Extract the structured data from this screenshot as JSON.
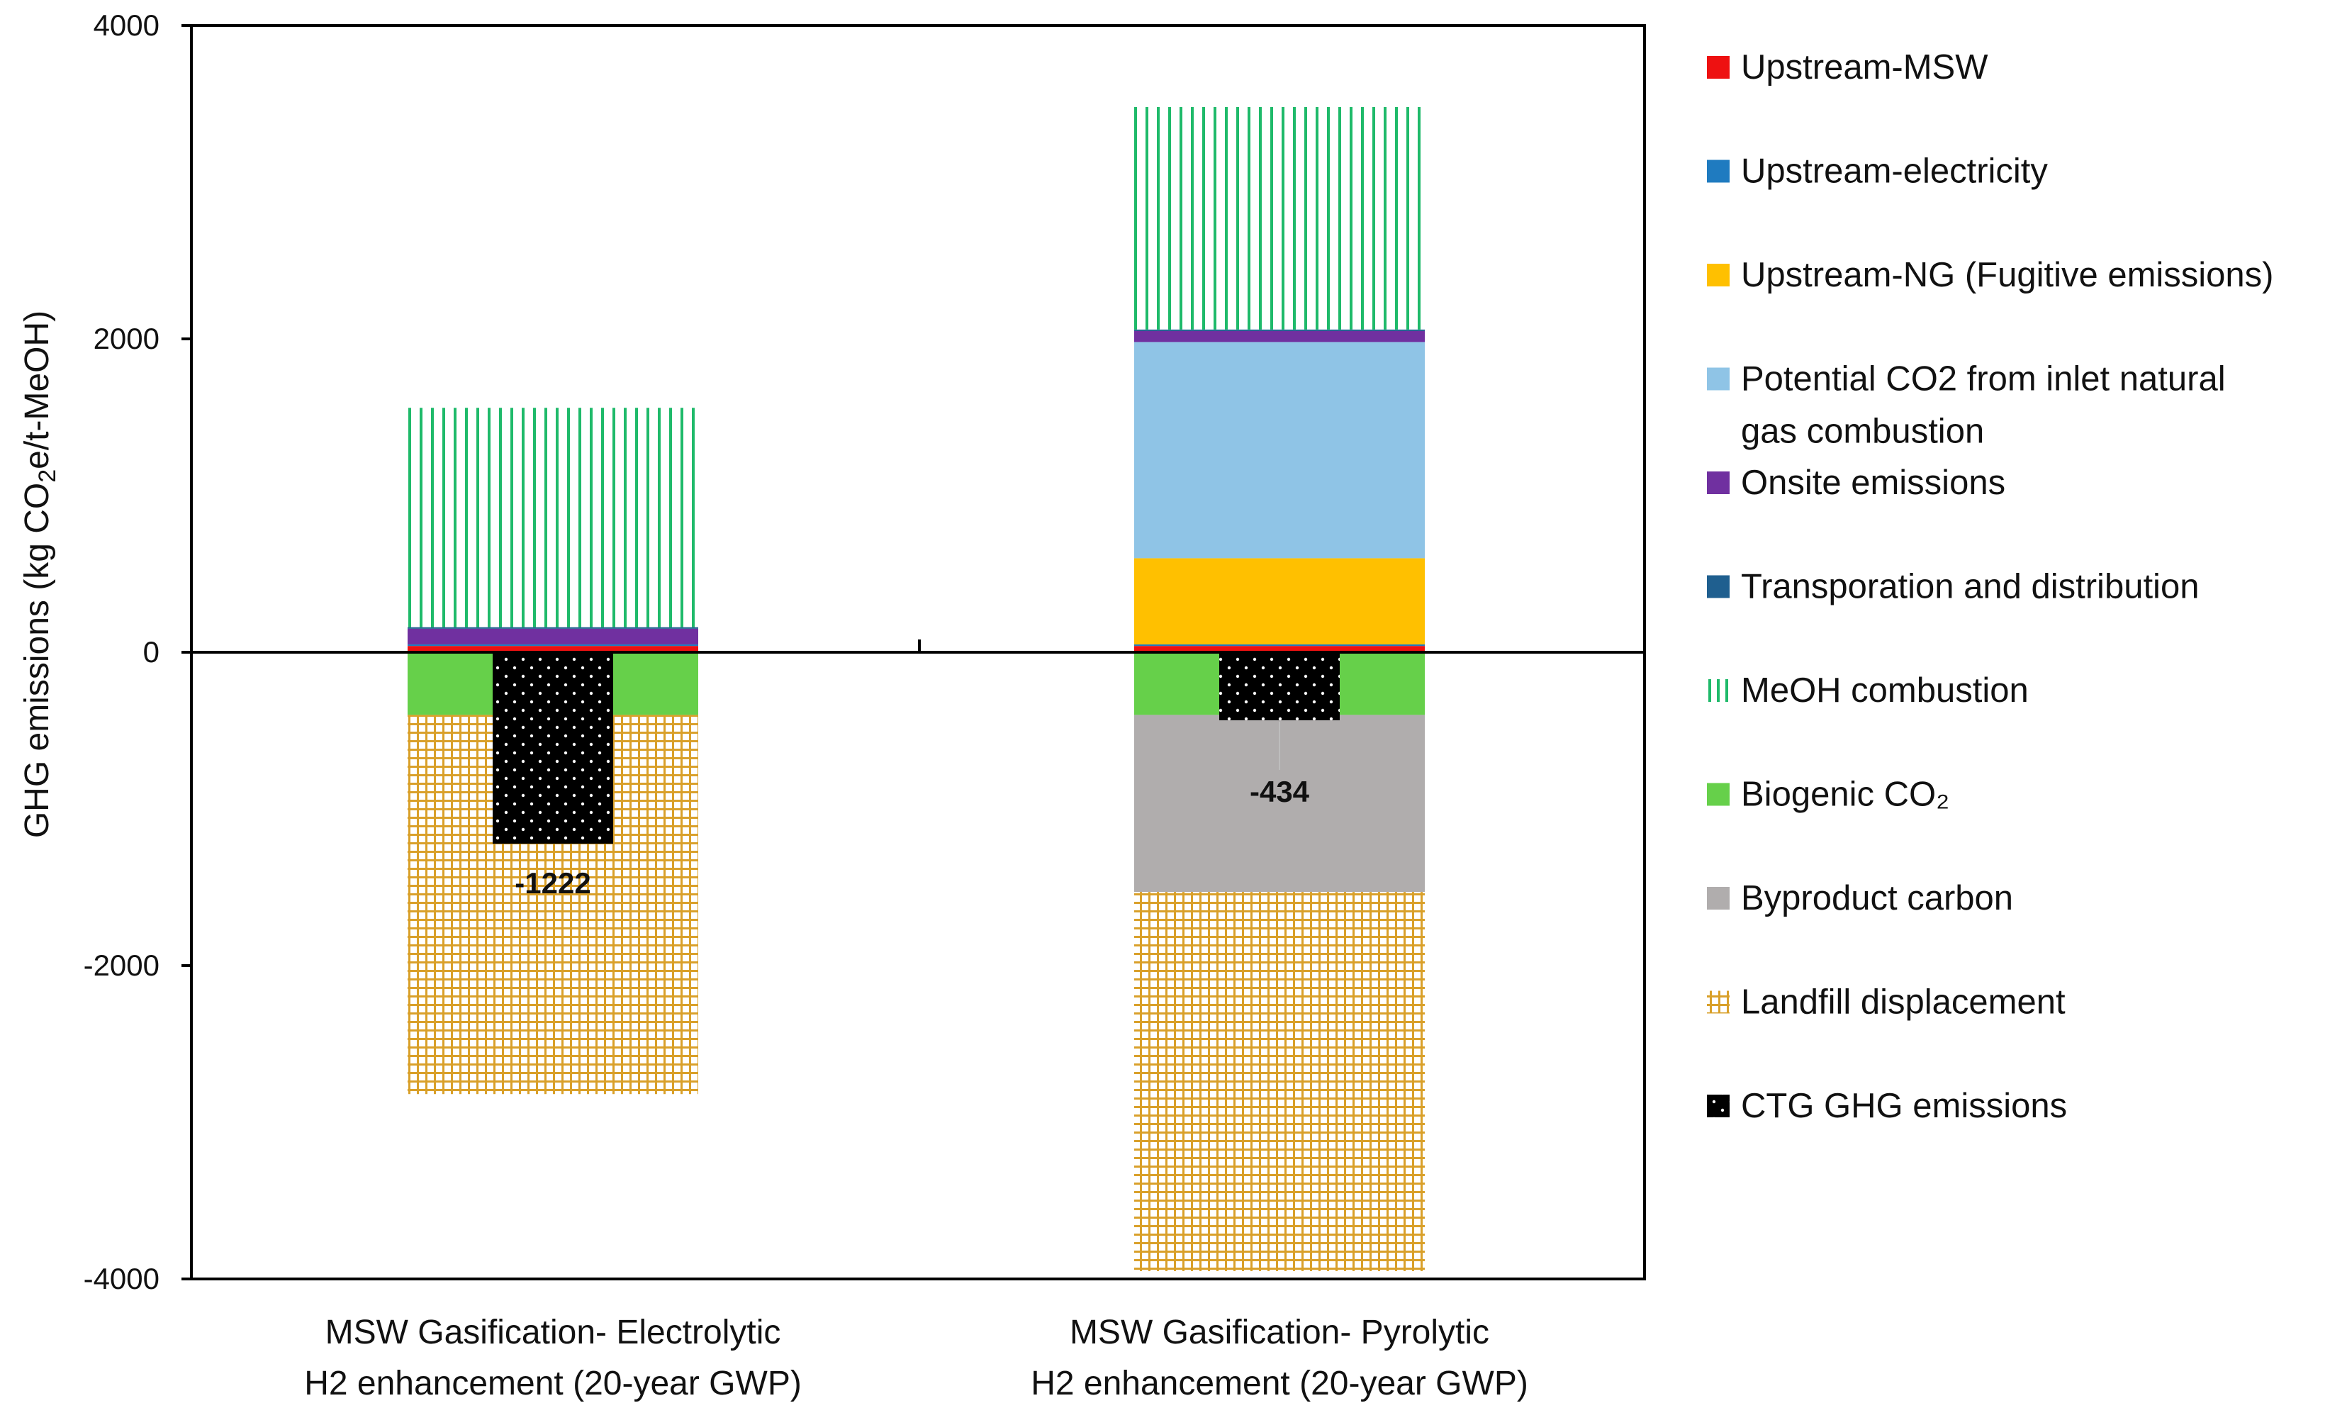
{
  "chart_data": {
    "type": "bar",
    "stacked": true,
    "title": "",
    "xlabel": "",
    "ylabel_prefix": "GHG emissions (kg CO",
    "ylabel_sub": "2",
    "ylabel_suffix": "e/t-MeOH)",
    "ylim": [
      -4000,
      4000
    ],
    "yticks": [
      4000,
      2000,
      0,
      -2000,
      -4000
    ],
    "categories": [
      [
        "MSW Gasification- Electrolytic",
        "H2 enhancement (20-year GWP)"
      ],
      [
        "MSW Gasification- Pyrolytic",
        "H2 enhancement (20-year GWP)"
      ]
    ],
    "series": [
      {
        "name": "Upstream-MSW",
        "legend_lines": [
          "Upstream-MSW"
        ],
        "color": "#ee1111",
        "pattern": "solid",
        "values": [
          40,
          40
        ]
      },
      {
        "name": "Upstream-electricity",
        "legend_lines": [
          "Upstream-electricity"
        ],
        "color": "#1f7bc0",
        "pattern": "solid",
        "values": [
          10,
          10
        ]
      },
      {
        "name": "Upstream-NG (Fugitive emissions)",
        "legend_lines": [
          "Upstream-NG (Fugitive emissions)"
        ],
        "color": "#ffc000",
        "pattern": "solid",
        "values": [
          0,
          550
        ]
      },
      {
        "name": "Potential CO2 from inlet natural gas combustion",
        "legend_lines": [
          "Potential CO2 from inlet natural",
          "gas combustion"
        ],
        "color": "#8fc4e6",
        "pattern": "solid",
        "values": [
          0,
          1380
        ]
      },
      {
        "name": "Onsite emissions",
        "legend_lines": [
          "Onsite emissions"
        ],
        "color": "#7030a0",
        "pattern": "solid",
        "values": [
          100,
          70
        ]
      },
      {
        "name": "Transporation and distribution",
        "legend_lines": [
          "Transporation and distribution"
        ],
        "color": "#1f5f8f",
        "pattern": "solid",
        "values": [
          10,
          10
        ]
      },
      {
        "name": "MeOH combustion",
        "legend_lines": [
          "MeOH combustion"
        ],
        "color": "#1fba6a",
        "pattern": "vlines",
        "values": [
          1400,
          1420
        ]
      },
      {
        "name": "Biogenic CO2",
        "legend_lines": [
          "Biogenic CO₂"
        ],
        "color": "#66d04a",
        "pattern": "solid",
        "values": [
          -400,
          -400
        ]
      },
      {
        "name": "Byproduct carbon",
        "legend_lines": [
          "Byproduct carbon"
        ],
        "color": "#b0adad",
        "pattern": "solid",
        "values": [
          0,
          -1130
        ]
      },
      {
        "name": "Landfill displacement",
        "legend_lines": [
          "Landfill displacement"
        ],
        "color": "#d9a02a",
        "pattern": "grid",
        "values": [
          -2420,
          -2420
        ]
      }
    ],
    "net": {
      "name": "CTG GHG emissions",
      "legend_lines": [
        "CTG GHG emissions"
      ],
      "color": "#000000",
      "pattern": "dots",
      "values": [
        -1222,
        -434
      ],
      "labels": [
        "-1222",
        "-434"
      ]
    }
  }
}
